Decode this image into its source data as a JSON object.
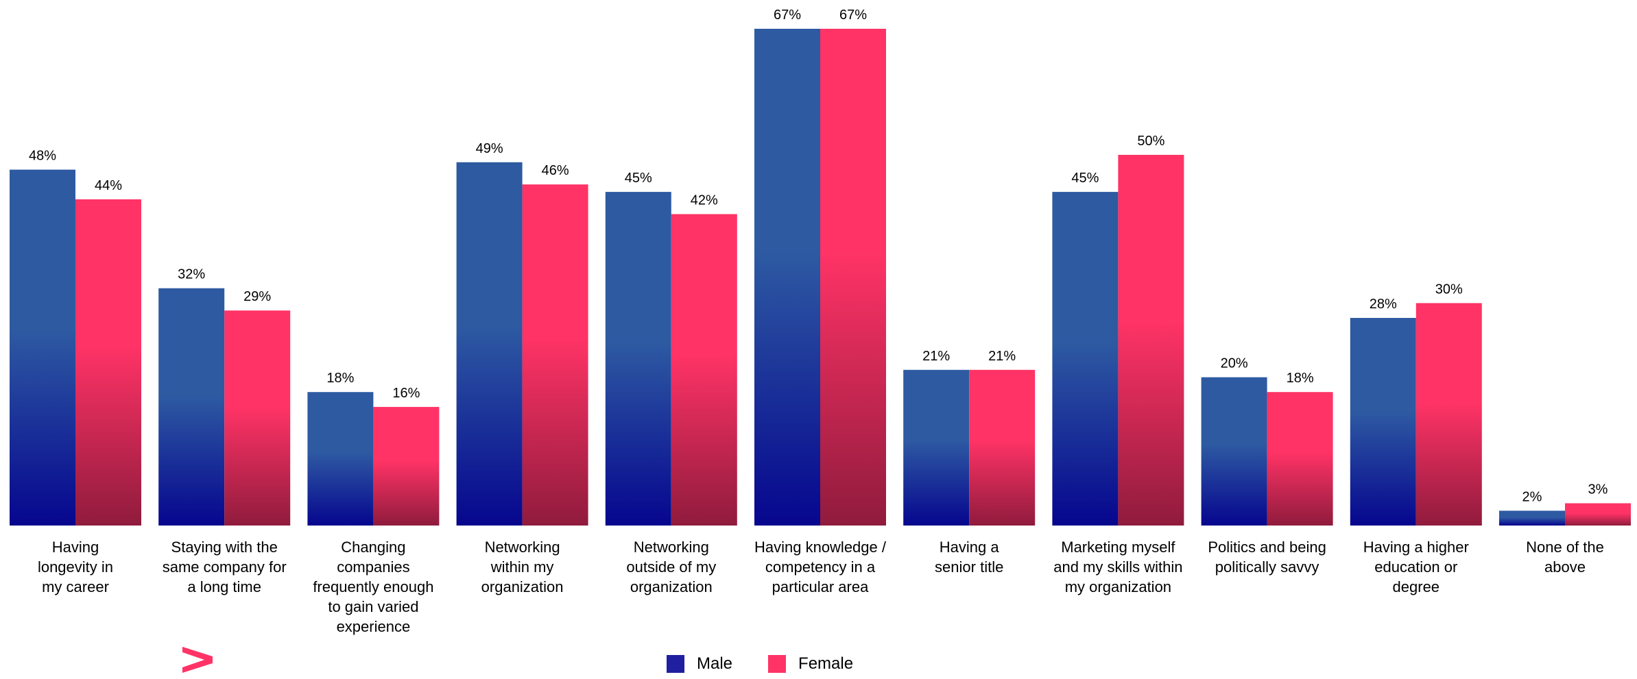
{
  "colors": {
    "male": "#1f1fa0",
    "male_top": "#2e5aa2",
    "male_bottom": "#06068e",
    "female": "#ff3366",
    "female_top": "#ff3366",
    "female_bottom": "#901b3d",
    "brand_mark": "#ff3366"
  },
  "brand_mark": {
    "icon": "greater-than-chevron-icon"
  },
  "chart_data": {
    "type": "bar",
    "categories": [
      "Having\nlongevity in\nmy career",
      "Staying with the\nsame company for\na long time",
      "Changing\ncompanies\nfrequently enough\nto gain varied\nexperience",
      "Networking\nwithin my\norganization",
      "Networking\noutside of my\norganization",
      "Having knowledge /\ncompetency in a\nparticular area",
      "Having a\nsenior title",
      "Marketing myself\nand my skills within\nmy organization",
      "Politics and being\npolitically savvy",
      "Having a higher\neducation or\ndegree",
      "None of the\nabove"
    ],
    "series": [
      {
        "name": "Male",
        "values": [
          48,
          32,
          18,
          49,
          45,
          67,
          21,
          45,
          20,
          28,
          2
        ],
        "labels": [
          "48%",
          "32%",
          "18%",
          "49%",
          "45%",
          "67%",
          "21%",
          "45%",
          "20%",
          "28%",
          "2%"
        ]
      },
      {
        "name": "Female",
        "values": [
          44,
          29,
          16,
          46,
          42,
          67,
          21,
          50,
          18,
          30,
          3
        ],
        "labels": [
          "44%",
          "29%",
          "16%",
          "46%",
          "42%",
          "67%",
          "21%",
          "50%",
          "18%",
          "30%",
          "3%"
        ]
      }
    ],
    "title": "",
    "xlabel": "",
    "ylabel": "",
    "ylim": [
      0,
      67
    ],
    "grid": false,
    "legend_position": "bottom-center"
  }
}
